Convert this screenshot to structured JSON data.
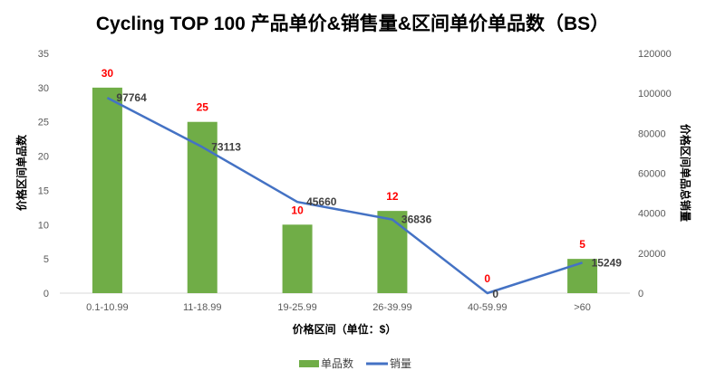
{
  "chart_data": {
    "type": "bar+line",
    "title": "Cycling TOP 100 产品单价&销售量&区间单价单品数（BS）",
    "xlabel": "价格区间（单位：$）",
    "ylabel_left": "价格区间单品数",
    "ylabel_right": "价格区间单品总销量",
    "categories": [
      "0.1-10.99",
      "11-18.99",
      "19-25.99",
      "26-39.99",
      "40-59.99",
      ">60"
    ],
    "series": [
      {
        "name": "单品数",
        "type": "bar",
        "axis": "left",
        "color": "#70ad47",
        "values": [
          30,
          25,
          10,
          12,
          0,
          5
        ]
      },
      {
        "name": "销量",
        "type": "line",
        "axis": "right",
        "color": "#4472c4",
        "values": [
          97764,
          73113,
          45660,
          36836,
          0,
          15249
        ]
      }
    ],
    "ylim_left": [
      0,
      35
    ],
    "yticks_left": [
      "0",
      "5",
      "10",
      "15",
      "20",
      "25",
      "30",
      "35"
    ],
    "ylim_right": [
      0,
      120000
    ],
    "yticks_right": [
      "0",
      "20000",
      "40000",
      "60000",
      "80000",
      "100000",
      "120000"
    ],
    "legend": "bottom",
    "grid": false
  }
}
